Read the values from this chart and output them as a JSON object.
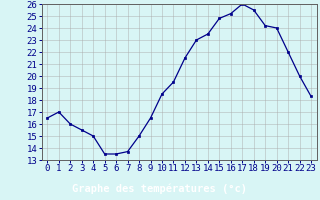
{
  "hours": [
    0,
    1,
    2,
    3,
    4,
    5,
    6,
    7,
    8,
    9,
    10,
    11,
    12,
    13,
    14,
    15,
    16,
    17,
    18,
    19,
    20,
    21,
    22,
    23
  ],
  "temps": [
    16.5,
    17.0,
    16.0,
    15.5,
    15.0,
    13.5,
    13.5,
    13.7,
    15.0,
    16.5,
    18.5,
    19.5,
    21.5,
    23.0,
    23.5,
    24.8,
    25.2,
    26.0,
    25.5,
    24.2,
    24.0,
    22.0,
    20.0,
    18.3
  ],
  "ylim": [
    13,
    26
  ],
  "yticks": [
    13,
    14,
    15,
    16,
    17,
    18,
    19,
    20,
    21,
    22,
    23,
    24,
    25,
    26
  ],
  "xlabel": "Graphe des températures (°c)",
  "line_color": "#00008b",
  "marker_color": "#00008b",
  "bg_color": "#d8f5f5",
  "grid_color": "#aaaaaa",
  "axis_label_color": "#00008b",
  "tick_color": "#00008b",
  "border_color": "#606060",
  "font_size": 6.5,
  "xlabel_font_size": 7.5,
  "bottom_bar_color": "#3333aa",
  "bottom_bar_height": 0.13
}
